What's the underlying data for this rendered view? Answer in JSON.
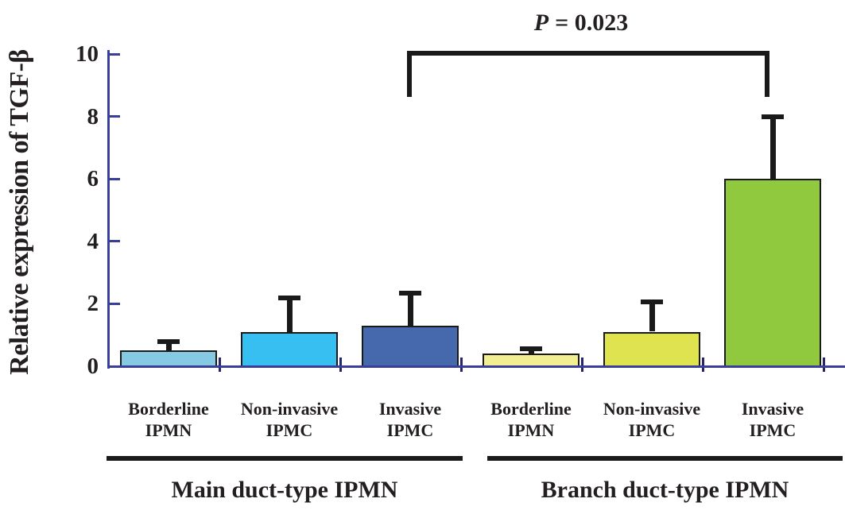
{
  "figure": {
    "background": "#ffffff"
  },
  "chart_data": {
    "type": "bar",
    "title": "",
    "xlabel": "",
    "ylabel": "Relative expression of TGF-β",
    "ylim": [
      0,
      10
    ],
    "yticks": [
      10,
      8,
      6,
      4,
      2,
      0
    ],
    "ytick_labels": [
      "10",
      "8",
      "6",
      "4",
      "2",
      "0"
    ],
    "grid": false,
    "legend": "none",
    "error_bars": "upper only",
    "groups": [
      {
        "label": "Main duct-type IPMN",
        "bars": [
          {
            "category_line1": "Borderline",
            "category_line2": "IPMN",
            "value": 0.5,
            "error_top": 0.8,
            "color": "#85CAE2"
          },
          {
            "category_line1": "Non-invasive",
            "category_line2": "IPMC",
            "value": 1.1,
            "error_top": 2.2,
            "color": "#36BFF0"
          },
          {
            "category_line1": "Invasive",
            "category_line2": "IPMC",
            "value": 1.3,
            "error_top": 2.35,
            "color": "#4669AE"
          }
        ]
      },
      {
        "label": "Branch duct-type IPMN",
        "bars": [
          {
            "category_line1": "Borderline",
            "category_line2": "IPMN",
            "value": 0.4,
            "error_top": 0.55,
            "color": "#F1EF91"
          },
          {
            "category_line1": "Non-invasive",
            "category_line2": "IPMC",
            "value": 1.1,
            "error_top": 2.05,
            "color": "#DFE34F"
          },
          {
            "category_line1": "Invasive",
            "category_line2": "IPMC",
            "value": 6.0,
            "error_top": 8.0,
            "color": "#90C83E"
          }
        ]
      }
    ],
    "significance": {
      "p_symbol": "P",
      "p_value_text": "= 0.023",
      "connects": [
        "Invasive IPMC (Main duct-type IPMN)",
        "Invasive IPMC (Branch duct-type IPMN)"
      ]
    },
    "colors": {
      "axis": "#3a3e9b",
      "boundary_tick": "#23266b",
      "error_bar": "#1a1a1a",
      "bar_border": "#1a1a1a",
      "text": "#231f20"
    }
  }
}
